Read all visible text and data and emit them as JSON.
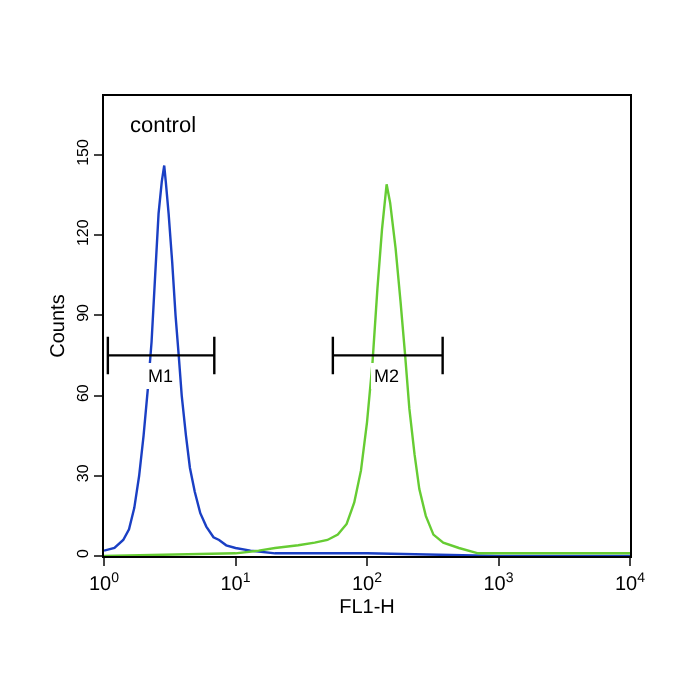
{
  "chart_data": {
    "type": "line",
    "xlabel": "FL1-H",
    "ylabel": "Counts",
    "annotations": [
      "control"
    ],
    "log": "x",
    "xlim": [
      1,
      10000
    ],
    "xticks": [
      {
        "value": 1,
        "label": "10$^{0}$"
      },
      {
        "value": 10,
        "label": "10$^{1}$"
      },
      {
        "value": 100,
        "label": "10$^{2}$"
      },
      {
        "value": 1000,
        "label": "10$^{3}$"
      },
      {
        "value": 10000,
        "label": "10$^{4}$"
      }
    ],
    "ylim": [
      0,
      172
    ],
    "yticks": [
      0,
      30,
      60,
      90,
      120,
      150
    ],
    "legend": false,
    "marker": "none",
    "line_style": "solid",
    "series": [
      {
        "color": "#1a3fc4",
        "x": [
          1.0,
          1.2,
          1.4,
          1.55,
          1.7,
          1.85,
          2.0,
          2.15,
          2.3,
          2.45,
          2.6,
          2.75,
          2.87,
          2.95,
          3.1,
          3.3,
          3.5,
          3.7,
          3.9,
          4.2,
          4.5,
          4.9,
          5.4,
          6.0,
          6.8,
          7.5,
          8.5,
          10,
          13,
          20,
          40,
          100,
          1000,
          10000
        ],
        "values": [
          2,
          3,
          6,
          10,
          18,
          30,
          45,
          62,
          80,
          105,
          128,
          140,
          146,
          140,
          128,
          110,
          90,
          75,
          60,
          45,
          33,
          24,
          16,
          11,
          7,
          6,
          4,
          3,
          2,
          1,
          1,
          1,
          0,
          0
        ]
      },
      {
        "color": "#66cc33",
        "x": [
          1,
          10,
          15,
          20,
          30,
          40,
          50,
          60,
          70,
          80,
          90,
          100,
          110,
          120,
          130,
          141,
          150,
          165,
          180,
          195,
          210,
          230,
          250,
          280,
          320,
          380,
          500,
          700,
          2000,
          10000
        ],
        "values": [
          0,
          1,
          2,
          3,
          4,
          5,
          6,
          8,
          12,
          20,
          32,
          50,
          72,
          100,
          122,
          139,
          132,
          115,
          95,
          75,
          55,
          38,
          25,
          15,
          8,
          5,
          3,
          1,
          1,
          1
        ]
      },
      {
        "name": "M1",
        "color": "#000000",
        "x": [
          1.07,
          1.07,
          1.07,
          6.9,
          6.9,
          6.9
        ],
        "values": [
          68,
          82,
          75,
          75,
          82,
          68
        ]
      },
      {
        "name": "M2",
        "color": "#000000",
        "x": [
          55,
          55,
          55,
          376,
          376,
          376
        ],
        "values": [
          68,
          82,
          75,
          75,
          82,
          68
        ]
      }
    ]
  }
}
